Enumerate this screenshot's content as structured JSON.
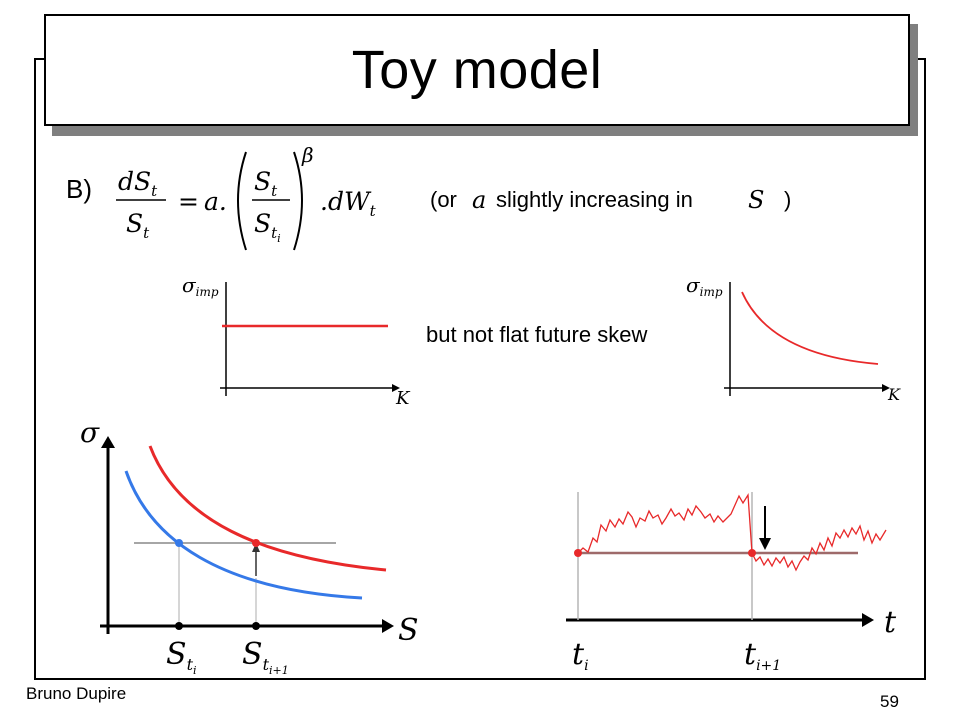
{
  "slide": {
    "title": "Toy model",
    "label": "B)",
    "note": {
      "open": "(or",
      "a_symbol": "a",
      "middle": "slightly increasing in",
      "s_symbol": "S",
      "close": ")"
    },
    "but_text": "but not flat future skew",
    "footer": {
      "author": "Bruno Dupire",
      "page": "59"
    }
  },
  "equation": {
    "num": "dS",
    "sub_t": "t",
    "den": "S",
    "equals": "=",
    "a_dot": "a.",
    "inner_num": "S",
    "inner_den": "S",
    "sub_i": "i",
    "exponent": "β",
    "dW": ".dW"
  },
  "axes": {
    "sigma_imp": "σ",
    "imp_sub": "imp",
    "K": "K",
    "sigma": "σ",
    "S": "S",
    "t": "t",
    "S_ti": "S",
    "S_ti1": "S",
    "t_i": "t",
    "t_i1": "t",
    "sub_t": "t",
    "sub_i": "i",
    "sub_i1": "i+1"
  },
  "colors": {
    "red": "#e8292a",
    "blue": "#3579e8",
    "gray": "#a6a6a6",
    "dark_red": "#9e6a6a"
  }
}
